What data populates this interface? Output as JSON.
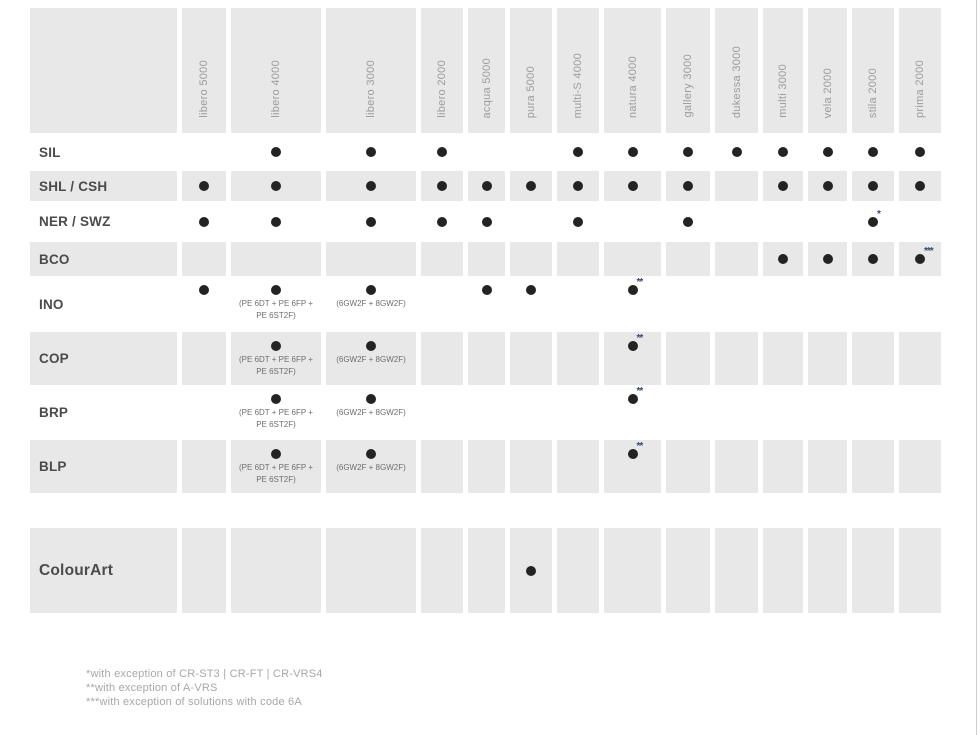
{
  "colors": {
    "shade": "#e8e8e8",
    "dot": "#232323",
    "mark": "#3b4a6a",
    "page_edge": "#cccccc"
  },
  "table": {
    "columns": [
      {
        "label": "libero 5000",
        "width": 44
      },
      {
        "label": "libero 4000",
        "width": 90
      },
      {
        "label": "libero 3000",
        "width": 90
      },
      {
        "label": "libero 2000",
        "width": 42
      },
      {
        "label": "acqua 5000",
        "width": 37
      },
      {
        "label": "pura 5000",
        "width": 42
      },
      {
        "label": "multi-S 4000",
        "width": 42
      },
      {
        "label": "natura 4000",
        "width": 57
      },
      {
        "label": "gallery 3000",
        "width": 44
      },
      {
        "label": "dukessa 3000",
        "width": 43
      },
      {
        "label": "multi 3000",
        "width": 40
      },
      {
        "label": "vela 2000",
        "width": 39
      },
      {
        "label": "stila 2000",
        "width": 42
      },
      {
        "label": "prima 2000",
        "width": 42
      }
    ],
    "rows": [
      {
        "label": "SIL",
        "shaded": false,
        "height": 38,
        "cells": [
          {},
          {
            "dot": true
          },
          {
            "dot": true
          },
          {
            "dot": true
          },
          {},
          {},
          {
            "dot": true
          },
          {
            "dot": true
          },
          {
            "dot": true
          },
          {
            "dot": true
          },
          {
            "dot": true
          },
          {
            "dot": true
          },
          {
            "dot": true
          },
          {
            "dot": true
          }
        ]
      },
      {
        "label": "SHL / CSH",
        "shaded": true,
        "height": 30,
        "cells": [
          {
            "dot": true
          },
          {
            "dot": true
          },
          {
            "dot": true
          },
          {
            "dot": true
          },
          {
            "dot": true
          },
          {
            "dot": true
          },
          {
            "dot": true
          },
          {
            "dot": true
          },
          {
            "dot": true
          },
          {},
          {
            "dot": true
          },
          {
            "dot": true
          },
          {
            "dot": true
          },
          {
            "dot": true
          }
        ]
      },
      {
        "label": "NER / SWZ",
        "shaded": false,
        "height": 41,
        "cells": [
          {
            "dot": true
          },
          {
            "dot": true
          },
          {
            "dot": true
          },
          {
            "dot": true
          },
          {
            "dot": true
          },
          {},
          {
            "dot": true
          },
          {},
          {
            "dot": true
          },
          {},
          {},
          {},
          {
            "dot": true,
            "mark": "*"
          },
          {}
        ]
      },
      {
        "label": "BCO",
        "shaded": true,
        "height": 34,
        "cells": [
          {},
          {},
          {},
          {},
          {},
          {},
          {},
          {},
          {},
          {},
          {
            "dot": true
          },
          {
            "dot": true
          },
          {
            "dot": true
          },
          {
            "dot": true,
            "mark": "***"
          }
        ]
      },
      {
        "label": "INO",
        "shaded": false,
        "height": 56,
        "cells": [
          {
            "dot": true
          },
          {
            "dot": true,
            "caption": [
              "(PE 6DT + PE 6FP +",
              "PE 6ST2F)"
            ]
          },
          {
            "dot": true,
            "caption": [
              "(6GW2F + 8GW2F)"
            ]
          },
          {},
          {
            "dot": true
          },
          {
            "dot": true
          },
          {},
          {
            "dot": true,
            "mark": "**"
          },
          {},
          {},
          {},
          {},
          {},
          {}
        ]
      },
      {
        "label": "COP",
        "shaded": true,
        "height": 53,
        "cells": [
          {},
          {
            "dot": true,
            "caption": [
              "(PE 6DT + PE 6FP +",
              "PE 6ST2F)"
            ]
          },
          {
            "dot": true,
            "caption": [
              "(6GW2F + 8GW2F)"
            ]
          },
          {},
          {},
          {},
          {},
          {
            "dot": true,
            "mark": "**"
          },
          {},
          {},
          {},
          {},
          {},
          {}
        ]
      },
      {
        "label": "BRP",
        "shaded": false,
        "height": 55,
        "cells": [
          {},
          {
            "dot": true,
            "caption": [
              "(PE 6DT + PE 6FP +",
              "PE 6ST2F)"
            ]
          },
          {
            "dot": true,
            "caption": [
              "(6GW2F + 8GW2F)"
            ]
          },
          {},
          {},
          {},
          {},
          {
            "dot": true,
            "mark": "**"
          },
          {},
          {},
          {},
          {},
          {},
          {}
        ]
      },
      {
        "label": "BLP",
        "shaded": true,
        "height": 53,
        "cells": [
          {},
          {
            "dot": true,
            "caption": [
              "(PE 6DT + PE 6FP +",
              "PE 6ST2F)"
            ]
          },
          {
            "dot": true,
            "caption": [
              "(6GW2F + 8GW2F)"
            ]
          },
          {},
          {},
          {},
          {},
          {
            "dot": true,
            "mark": "**"
          },
          {},
          {},
          {},
          {},
          {},
          {}
        ]
      },
      {
        "label": "ColourArt",
        "shaded": true,
        "height": 85,
        "large_label": true,
        "spacer_before": true,
        "cells": [
          {},
          {},
          {},
          {},
          {},
          {
            "dot": true
          },
          {},
          {},
          {},
          {},
          {},
          {},
          {},
          {}
        ]
      }
    ],
    "footnotes": [
      "*with exception of CR-ST3 | CR-FT | CR-VRS4",
      "**with exception of A-VRS",
      "***with exception of solutions with code 6A"
    ]
  }
}
